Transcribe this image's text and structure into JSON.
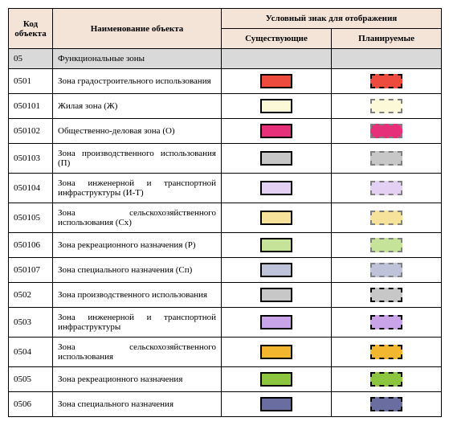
{
  "headers": {
    "code": "Код объекта",
    "name": "Наименование объекта",
    "symbol": "Условный знак для отображения",
    "existing": "Существующие",
    "planned": "Планируемые"
  },
  "section": {
    "code": "05",
    "name": "Функциональные зоны"
  },
  "solid_border_color": "#000000",
  "dashed_border_color": "#808080",
  "rows": [
    {
      "code": "0501",
      "name": "Зона градостроительного использования",
      "fill": "#ed4b3e",
      "planned_fill": "#ed4b3e",
      "planned_border": "#000000"
    },
    {
      "code": "050101",
      "name": "Жилая зона (Ж)",
      "fill": "#fbf9d7",
      "planned_fill": "#fbf9d7",
      "planned_border": "#808080"
    },
    {
      "code": "050102",
      "name": "Общественно-деловая зона (О)",
      "fill": "#e6317a",
      "planned_fill": "#e6317a",
      "planned_border": "#808080"
    },
    {
      "code": "050103",
      "name": "Зона производственного использования (П)",
      "fill": "#c7c7c7",
      "planned_fill": "#c7c7c7",
      "planned_border": "#808080"
    },
    {
      "code": "050104",
      "name": "Зона инженерной и транспортной инфраструктуры (И-Т)",
      "fill": "#e4d0f2",
      "planned_fill": "#e4d0f2",
      "planned_border": "#808080"
    },
    {
      "code": "050105",
      "name": "Зона сельскохозяйственного использования (Сх)",
      "fill": "#f6e29a",
      "planned_fill": "#f6e29a",
      "planned_border": "#808080"
    },
    {
      "code": "050106",
      "name": "Зона рекреационного назначения (Р)",
      "fill": "#c6e39a",
      "planned_fill": "#c6e39a",
      "planned_border": "#808080"
    },
    {
      "code": "050107",
      "name": "Зона специального назначения (Сп)",
      "fill": "#bfc3d9",
      "planned_fill": "#bfc3d9",
      "planned_border": "#808080"
    },
    {
      "code": "0502",
      "name": "Зона производственного использования",
      "fill": "#c7c7c7",
      "planned_fill": "#c7c7c7",
      "planned_border": "#000000"
    },
    {
      "code": "0503",
      "name": "Зона инженерной и транспортной инфраструктуры",
      "fill": "#c9a4e8",
      "planned_fill": "#c9a4e8",
      "planned_border": "#000000"
    },
    {
      "code": "0504",
      "name": "Зона сельскохозяйственного использования",
      "fill": "#f3b62f",
      "planned_fill": "#f3b62f",
      "planned_border": "#000000"
    },
    {
      "code": "0505",
      "name": "Зона рекреационного назначения",
      "fill": "#8bc63e",
      "planned_fill": "#8bc63e",
      "planned_border": "#000000"
    },
    {
      "code": "0506",
      "name": "Зона специального назначения",
      "fill": "#6a6da0",
      "planned_fill": "#6a6da0",
      "planned_border": "#000000"
    }
  ]
}
